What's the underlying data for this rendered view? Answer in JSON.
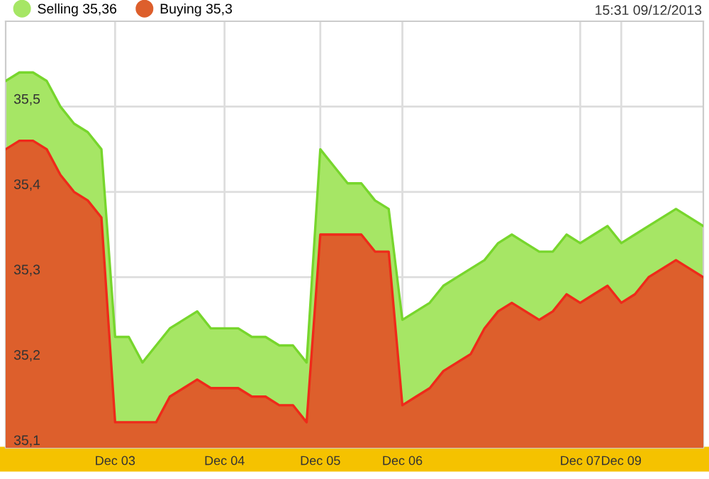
{
  "chart_data": {
    "type": "area",
    "annotations": [
      "15:31 09/12/2013"
    ],
    "categories": [
      null,
      null,
      null,
      null,
      null,
      null,
      null,
      null,
      "Dec 03",
      null,
      null,
      null,
      null,
      null,
      null,
      null,
      "Dec 04",
      null,
      null,
      null,
      null,
      null,
      null,
      "Dec 05",
      null,
      null,
      null,
      null,
      null,
      "Dec 06",
      null,
      null,
      null,
      null,
      null,
      null,
      null,
      null,
      null,
      null,
      null,
      null,
      "Dec 07",
      null,
      null,
      "Dec 09",
      null,
      null,
      null,
      null,
      null,
      null
    ],
    "series": [
      {
        "name": "Selling 35,36",
        "color": "#a6e665",
        "values": [
          35.53,
          35.54,
          35.54,
          35.53,
          35.5,
          35.48,
          35.47,
          35.45,
          35.23,
          35.23,
          35.2,
          35.22,
          35.24,
          35.25,
          35.26,
          35.24,
          35.24,
          35.24,
          35.23,
          35.23,
          35.22,
          35.22,
          35.2,
          35.45,
          35.43,
          35.41,
          35.41,
          35.39,
          35.38,
          35.25,
          35.26,
          35.27,
          35.29,
          35.3,
          35.31,
          35.32,
          35.34,
          35.35,
          35.34,
          35.33,
          35.33,
          35.35,
          35.34,
          35.35,
          35.36,
          35.34,
          35.35,
          35.36,
          35.37,
          35.38,
          35.37,
          35.36
        ]
      },
      {
        "name": "Buying 35,3",
        "color": "#dd5f2c",
        "values": [
          35.45,
          35.46,
          35.46,
          35.45,
          35.42,
          35.4,
          35.39,
          35.37,
          35.13,
          35.13,
          35.13,
          35.13,
          35.16,
          35.17,
          35.18,
          35.17,
          35.17,
          35.17,
          35.16,
          35.16,
          35.15,
          35.15,
          35.13,
          35.35,
          35.35,
          35.35,
          35.35,
          35.33,
          35.33,
          35.15,
          35.16,
          35.17,
          35.19,
          35.2,
          35.21,
          35.24,
          35.26,
          35.27,
          35.26,
          35.25,
          35.26,
          35.28,
          35.27,
          35.28,
          35.29,
          35.27,
          35.28,
          35.3,
          35.31,
          35.32,
          35.31,
          35.3
        ]
      }
    ],
    "ylim": [
      35.1,
      35.6
    ],
    "yticks": [
      {
        "value": 35.1,
        "label": "35,1"
      },
      {
        "value": 35.2,
        "label": "35,2"
      },
      {
        "value": 35.3,
        "label": "35,3"
      },
      {
        "value": 35.4,
        "label": "35,4"
      },
      {
        "value": 35.5,
        "label": "35,5"
      }
    ],
    "grid": true,
    "legend": "top left",
    "line_style": "solid",
    "marker": "none"
  }
}
